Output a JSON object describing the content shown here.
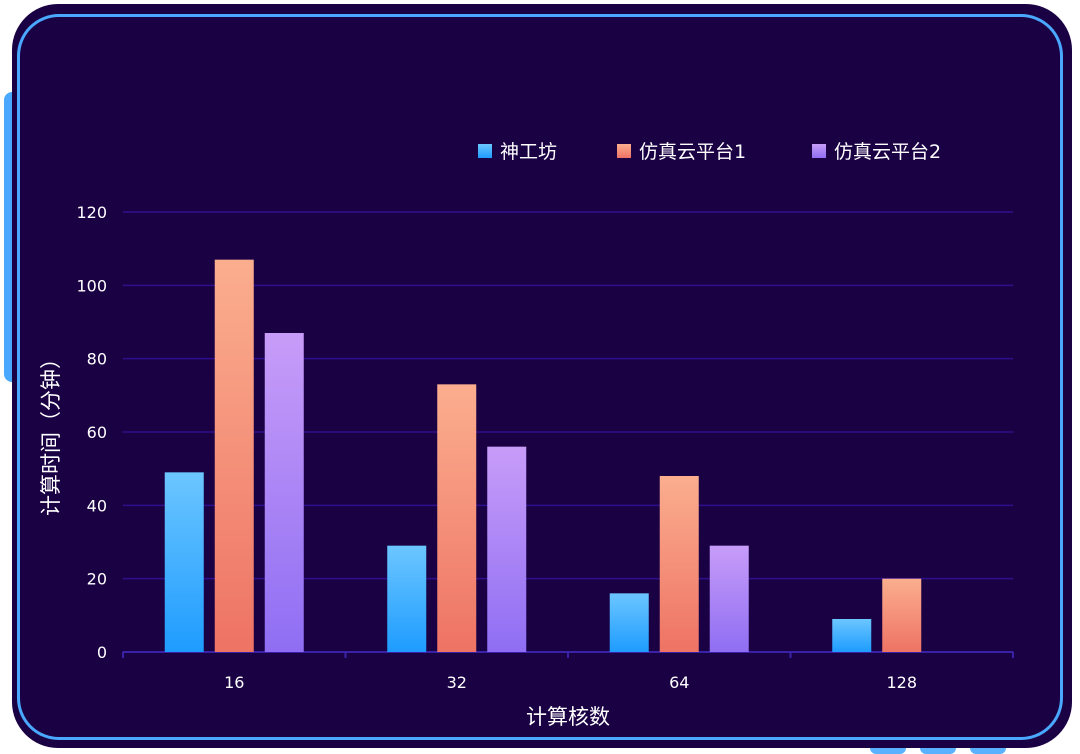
{
  "chart_data": {
    "type": "bar",
    "categories": [
      "16",
      "32",
      "64",
      "128"
    ],
    "series": [
      {
        "name": "神工坊",
        "values": [
          49,
          29,
          16,
          9
        ],
        "color_top": "#6cc6ff",
        "color_bottom": "#1e9cff"
      },
      {
        "name": "仿真云平台1",
        "values": [
          107,
          73,
          48,
          20
        ],
        "color_top": "#fbae8e",
        "color_bottom": "#ee7365"
      },
      {
        "name": "仿真云平台2",
        "values": [
          87,
          56,
          29,
          null
        ],
        "color_top": "#c79cf8",
        "color_bottom": "#8f6ef3"
      }
    ],
    "xlabel": "计算核数",
    "ylabel": "计算时间（分钟）",
    "ylim": [
      0,
      120
    ],
    "yticks": [
      "0",
      "20",
      "40",
      "60",
      "80",
      "100",
      "120"
    ],
    "grid": true,
    "legend_position": "top-right"
  }
}
